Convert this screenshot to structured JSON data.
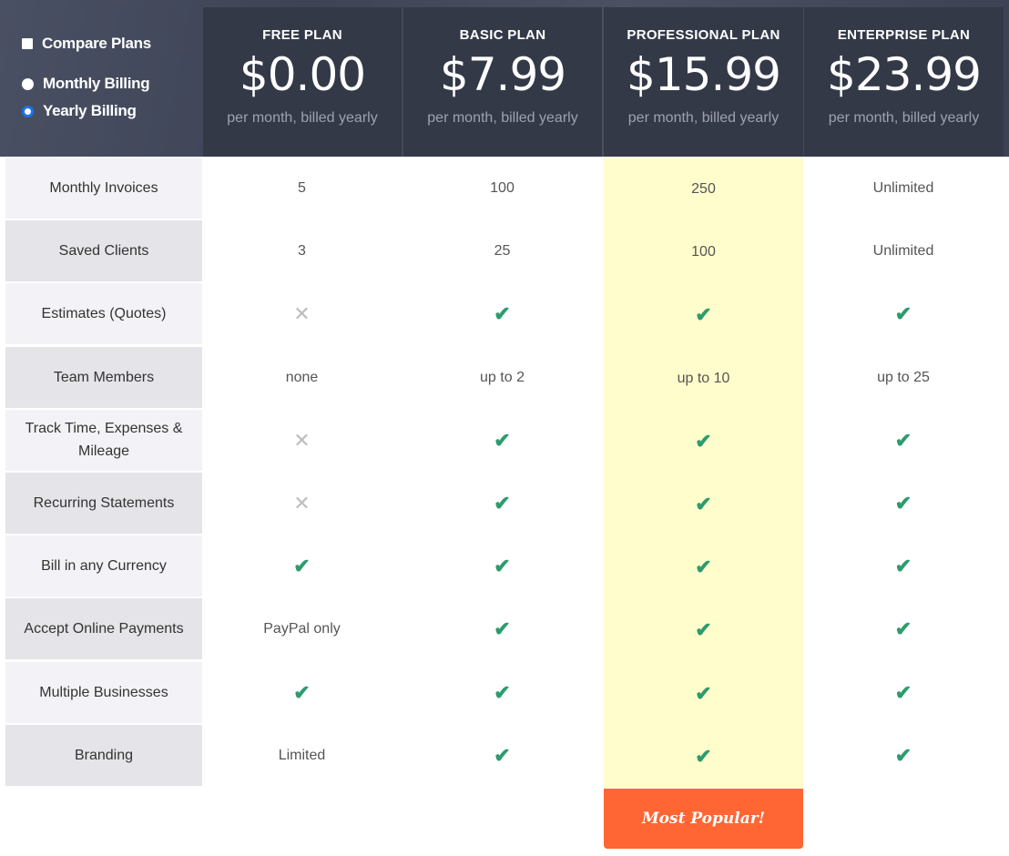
{
  "controls": {
    "compare_label": "Compare Plans",
    "monthly_label": "Monthly Billing",
    "yearly_label": "Yearly Billing",
    "selected": "yearly",
    "compare_checked": false
  },
  "plans": [
    {
      "name": "FREE PLAN",
      "price": "$0.00",
      "period": "per month, billed yearly"
    },
    {
      "name": "BASIC PLAN",
      "price": "$7.99",
      "period": "per month, billed yearly"
    },
    {
      "name": "PROFESSIONAL PLAN",
      "price": "$15.99",
      "period": "per month, billed yearly"
    },
    {
      "name": "ENTERPRISE PLAN",
      "price": "$23.99",
      "period": "per month, billed yearly"
    }
  ],
  "rows": [
    {
      "feature": "Monthly Invoices",
      "values": [
        "5",
        "100",
        "250",
        "Unlimited"
      ]
    },
    {
      "feature": "Saved Clients",
      "values": [
        "3",
        "25",
        "100",
        "Unlimited"
      ]
    },
    {
      "feature": "Estimates (Quotes)",
      "values": [
        "cross",
        "check",
        "check",
        "check"
      ]
    },
    {
      "feature": "Team Members",
      "values": [
        "none",
        "up to 2",
        "up to 10",
        "up to 25"
      ]
    },
    {
      "feature": "Track Time, Expenses & Mileage",
      "values": [
        "cross",
        "check",
        "check",
        "check"
      ]
    },
    {
      "feature": "Recurring Statements",
      "values": [
        "cross",
        "check",
        "check",
        "check"
      ]
    },
    {
      "feature": "Bill in any Currency",
      "values": [
        "check",
        "check",
        "check",
        "check"
      ]
    },
    {
      "feature": "Accept Online Payments",
      "values": [
        "PayPal only",
        "check",
        "check",
        "check"
      ]
    },
    {
      "feature": "Multiple Businesses",
      "values": [
        "check",
        "check",
        "check",
        "check"
      ]
    },
    {
      "feature": "Branding",
      "values": [
        "Limited",
        "check",
        "check",
        "check"
      ]
    }
  ],
  "highlight": {
    "label": "Most Popular!",
    "color": "#ff6633",
    "column_color": "#fffdcc"
  },
  "colors": {
    "check": "#2e9b6e",
    "cross": "#bdbdbd",
    "label_odd": "#f3f3f7",
    "label_even": "#e4e4e9"
  }
}
